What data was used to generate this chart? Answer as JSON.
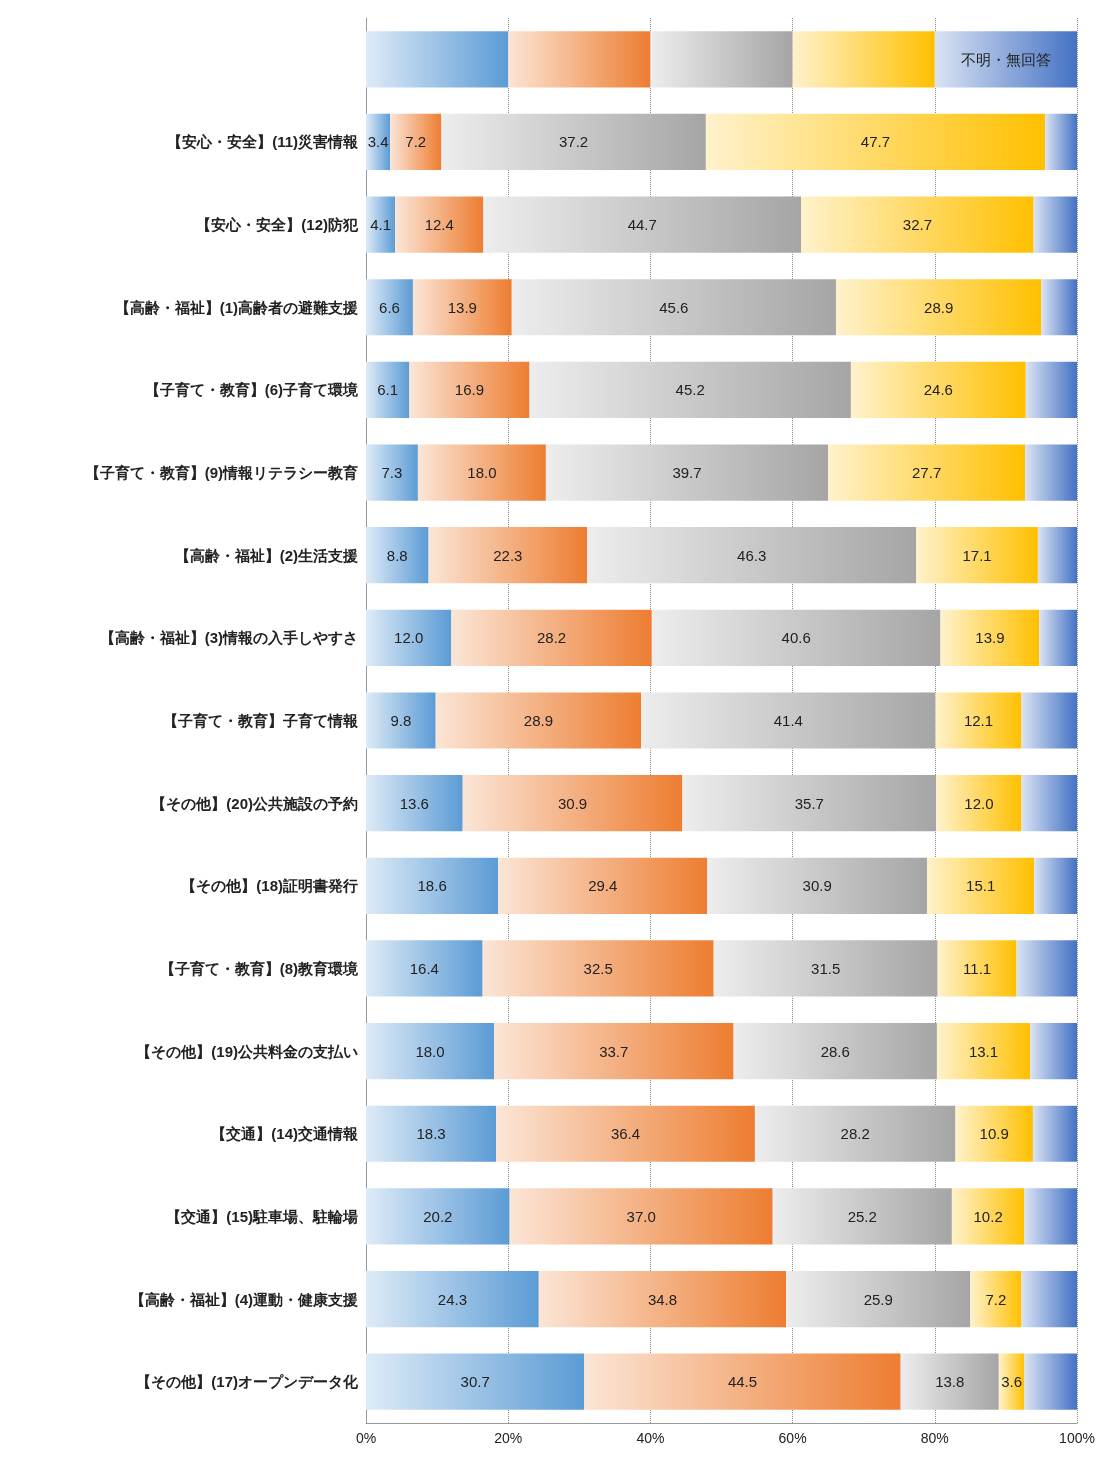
{
  "chart_data": {
    "type": "bar",
    "orientation": "horizontal",
    "stacked": true,
    "categories": [
      null,
      "【安心・安全】(11)災害情報",
      "【安心・安全】(12)防犯",
      "【高齢・福祉】(1)高齢者の避難支援",
      "【子育て・教育】(6)子育て環境",
      "【子育て・教育】(9)情報リテラシー教育",
      "【高齢・福祉】(2)生活支援",
      "【高齢・福祉】(3)情報の入手しやすさ",
      "【子育て・教育】子育て情報",
      "【その他】(20)公共施設の予約",
      "【その他】(18)証明書発行",
      "【子育て・教育】(8)教育環境",
      "【その他】(19)公共料金の支払い",
      "【交通】(14)交通情報",
      "【交通】(15)駐車場、駐輪場",
      "【高齢・福祉】(4)運動・健康支援",
      "【その他】(17)オープンデータ化"
    ],
    "series": [
      {
        "color": "#5b9bd5",
        "values": [
          20,
          3.4,
          4.1,
          6.6,
          6.1,
          7.3,
          8.8,
          12.0,
          9.8,
          13.6,
          18.6,
          16.4,
          18.0,
          18.3,
          20.2,
          24.3,
          30.7
        ],
        "value_labels": [
          null,
          "3.4",
          "4.1",
          "6.6",
          "6.1",
          "7.3",
          "8.8",
          "12.0",
          "9.8",
          "13.6",
          "18.6",
          "16.4",
          "18.0",
          "18.3",
          "20.2",
          "24.3",
          "30.7"
        ]
      },
      {
        "color": "#ed7d31",
        "values": [
          20,
          7.2,
          12.4,
          13.9,
          16.9,
          18.0,
          22.3,
          28.2,
          28.9,
          30.9,
          29.4,
          32.5,
          33.7,
          36.4,
          37.0,
          34.8,
          44.5
        ],
        "value_labels": [
          null,
          "7.2",
          "12.4",
          "13.9",
          "16.9",
          "18.0",
          "22.3",
          "28.2",
          "28.9",
          "30.9",
          "29.4",
          "32.5",
          "33.7",
          "36.4",
          "37.0",
          "34.8",
          "44.5"
        ]
      },
      {
        "color": "#a5a5a5",
        "values": [
          20,
          37.2,
          44.7,
          45.6,
          45.2,
          39.7,
          46.3,
          40.6,
          41.4,
          35.7,
          30.9,
          31.5,
          28.6,
          28.2,
          25.2,
          25.9,
          13.8
        ],
        "value_labels": [
          null,
          "37.2",
          "44.7",
          "45.6",
          "45.2",
          "39.7",
          "46.3",
          "40.6",
          "41.4",
          "35.7",
          "30.9",
          "31.5",
          "28.6",
          "28.2",
          "25.2",
          "25.9",
          "13.8"
        ]
      },
      {
        "color": "#ffc000",
        "values": [
          20,
          47.7,
          32.7,
          28.9,
          24.6,
          27.7,
          17.1,
          13.9,
          12.1,
          12.0,
          15.1,
          11.1,
          13.1,
          10.9,
          10.2,
          7.2,
          3.6
        ],
        "value_labels": [
          null,
          "47.7",
          "32.7",
          "28.9",
          "24.6",
          "27.7",
          "17.1",
          "13.9",
          "12.1",
          "12.0",
          "15.1",
          "11.1",
          "13.1",
          "10.9",
          "10.2",
          "7.2",
          "3.6"
        ]
      },
      {
        "color": "#4472c4",
        "values": [
          20,
          4.5,
          6.1,
          5.0,
          7.2,
          7.3,
          5.5,
          5.3,
          7.8,
          7.8,
          6.0,
          8.5,
          6.6,
          6.2,
          7.4,
          7.8,
          7.4
        ],
        "value_labels": [
          "不明・無回答",
          null,
          null,
          null,
          null,
          null,
          null,
          null,
          null,
          null,
          null,
          null,
          null,
          null,
          null,
          null,
          null
        ]
      }
    ],
    "xlim": [
      0,
      100
    ],
    "xticks": [
      {
        "value": 0,
        "label": "0%"
      },
      {
        "value": 20,
        "label": "20%"
      },
      {
        "value": 40,
        "label": "40%"
      },
      {
        "value": 60,
        "label": "60%"
      },
      {
        "value": 80,
        "label": "80%"
      },
      {
        "value": 100,
        "label": "100%"
      }
    ],
    "grid": "x"
  }
}
